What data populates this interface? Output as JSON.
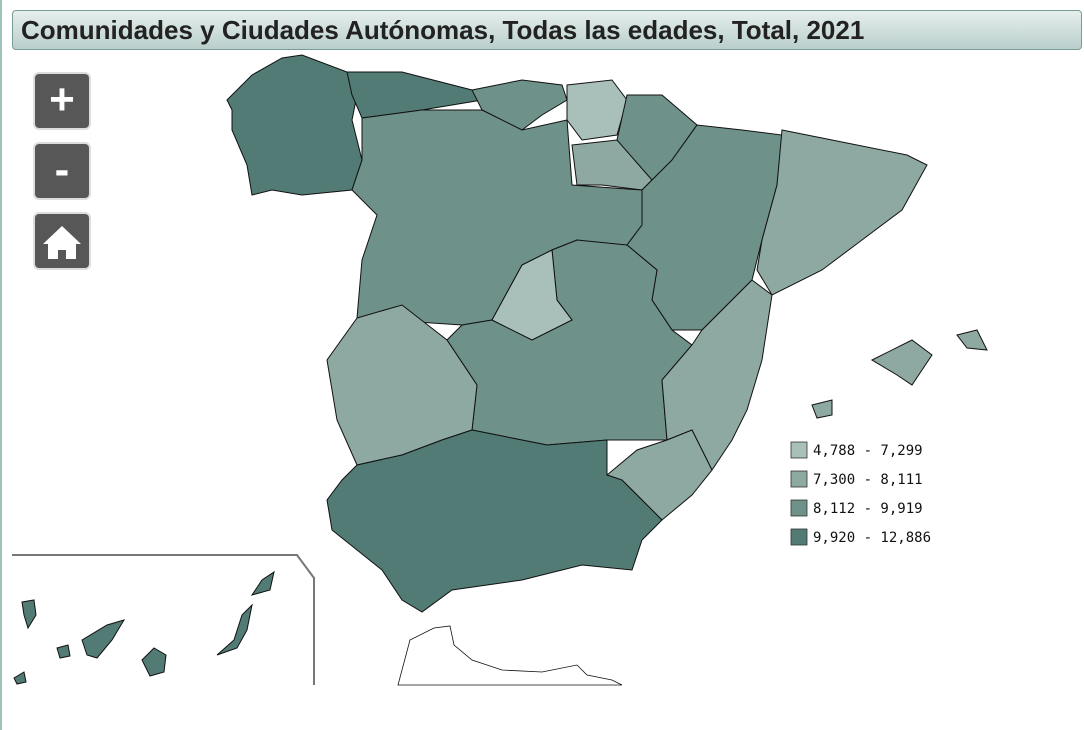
{
  "header": {
    "title": "Comunidades y Ciudades Autónomas, Todas las edades, Total, 2021"
  },
  "controls": {
    "zoom_in": "+",
    "zoom_out": "-"
  },
  "legend": {
    "items": [
      {
        "label": "4,788 - 7,299",
        "color": "#a9bfba"
      },
      {
        "label": "7,300 - 8,111",
        "color": "#8ea8a2"
      },
      {
        "label": "8,112 - 9,919",
        "color": "#6e918a"
      },
      {
        "label": "9,920 - 12,886",
        "color": "#517b74"
      }
    ]
  }
}
